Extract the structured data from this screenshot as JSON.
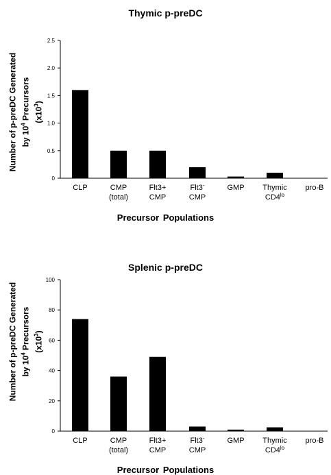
{
  "chart_data": [
    {
      "type": "bar",
      "title": "Thymic p-preDC",
      "xlabel": "Precursor  Populations",
      "ylabel_lines": [
        "Number of p-preDC Generated",
        "by 10^4 Precursors",
        "(x10^3)"
      ],
      "ylim": [
        0,
        2.5
      ],
      "yticks": [
        "0",
        "0.5",
        "1.0",
        "1.5",
        "2.0",
        "2.5"
      ],
      "ytick_values": [
        0,
        0.5,
        1.0,
        1.5,
        2.0,
        2.5
      ],
      "categories": [
        {
          "line1": "CLP",
          "line2": ""
        },
        {
          "line1": "CMP",
          "line2": "(total)"
        },
        {
          "line1": "Flt3+",
          "line2": "CMP"
        },
        {
          "line1": "Flt3-",
          "line2": "CMP"
        },
        {
          "line1": "GMP",
          "line2": ""
        },
        {
          "line1": "Thymic",
          "line2": "CD4lo"
        },
        {
          "line1": "pro-B",
          "line2": ""
        }
      ],
      "values": [
        1.6,
        0.5,
        0.5,
        0.2,
        0.03,
        0.1,
        0
      ],
      "bar_color": "#000000"
    },
    {
      "type": "bar",
      "title": "Splenic p-preDC",
      "xlabel": "Precursor  Populations",
      "ylabel_lines": [
        "Number of p-preDC Generated",
        "by 10^4 Precursors",
        "(x10^3)"
      ],
      "ylim": [
        0,
        100
      ],
      "yticks": [
        "0",
        "20",
        "40",
        "60",
        "80",
        "100"
      ],
      "ytick_values": [
        0,
        20,
        40,
        60,
        80,
        100
      ],
      "categories": [
        {
          "line1": "CLP",
          "line2": ""
        },
        {
          "line1": "CMP",
          "line2": "(total)"
        },
        {
          "line1": "Flt3+",
          "line2": "CMP"
        },
        {
          "line1": "Flt3-",
          "line2": "CMP"
        },
        {
          "line1": "GMP",
          "line2": ""
        },
        {
          "line1": "Thymic",
          "line2": "CD4lo"
        },
        {
          "line1": "pro-B",
          "line2": ""
        }
      ],
      "values": [
        74,
        36,
        49,
        3,
        1,
        2.5,
        0
      ],
      "bar_color": "#000000"
    }
  ]
}
